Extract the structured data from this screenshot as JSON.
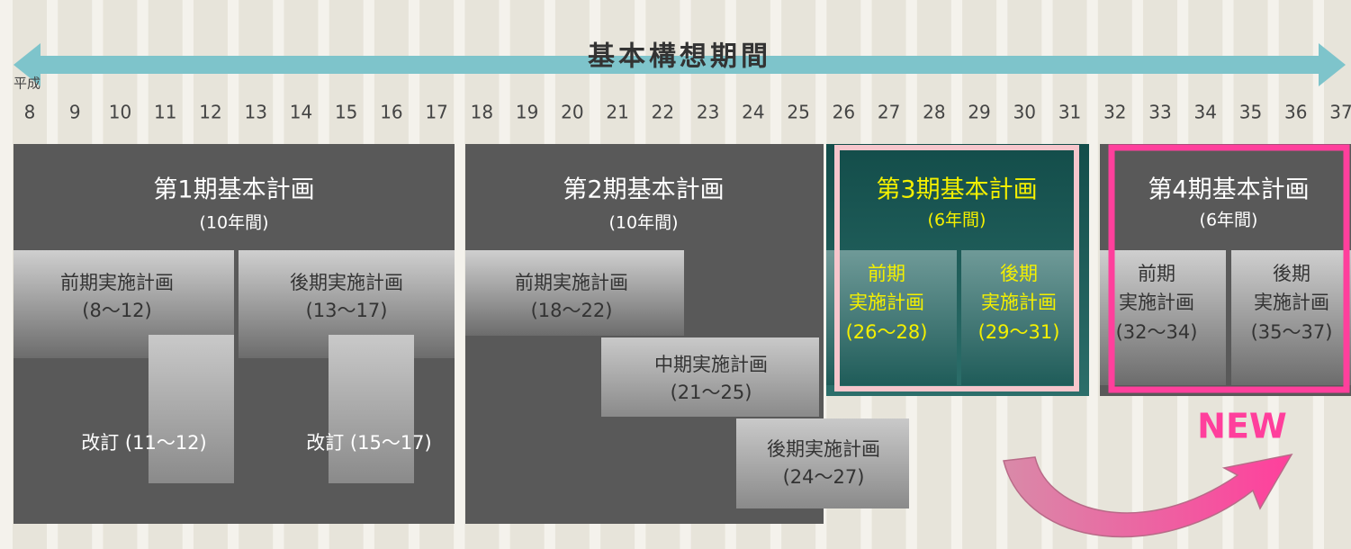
{
  "header": {
    "title": "基本構想期間",
    "era_label": "平成"
  },
  "years": [
    8,
    9,
    10,
    11,
    12,
    13,
    14,
    15,
    16,
    17,
    18,
    19,
    20,
    21,
    22,
    23,
    24,
    25,
    26,
    27,
    28,
    29,
    30,
    31,
    32,
    33,
    34,
    35,
    36,
    37
  ],
  "plans": [
    {
      "title": "第1期基本計画",
      "duration": "(10年間)",
      "subplans": [
        {
          "lines": [
            "前期実施計画",
            "(8～12)"
          ]
        },
        {
          "lines": [
            "後期実施計画",
            "(13～17)"
          ]
        },
        {
          "lines": [
            "改訂 (11～12)"
          ]
        },
        {
          "lines": [
            "改訂 (15～17)"
          ]
        }
      ]
    },
    {
      "title": "第2期基本計画",
      "duration": "(10年間)",
      "subplans": [
        {
          "lines": [
            "前期実施計画",
            "(18～22)"
          ]
        },
        {
          "lines": [
            "中期実施計画",
            "(21～25)"
          ]
        },
        {
          "lines": [
            "後期実施計画",
            "(24～27)"
          ]
        }
      ]
    },
    {
      "title": "第3期基本計画",
      "duration": "(6年間)",
      "subplans": [
        {
          "lines": [
            "前期",
            "実施計画",
            "(26～28)"
          ]
        },
        {
          "lines": [
            "後期",
            "実施計画",
            "(29～31)"
          ]
        }
      ]
    },
    {
      "title": "第4期基本計画",
      "duration": "(6年間)",
      "subplans": [
        {
          "lines": [
            "前期",
            "実施計画",
            "(32～34)"
          ]
        },
        {
          "lines": [
            "後期",
            "実施計画",
            "(35～37)"
          ]
        }
      ]
    }
  ],
  "badge": "NEW"
}
